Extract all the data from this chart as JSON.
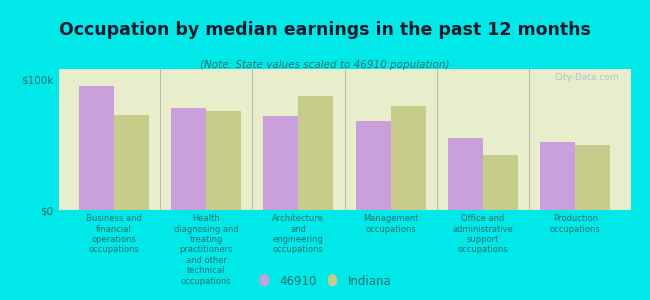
{
  "title": "Occupation by median earnings in the past 12 months",
  "subtitle": "(Note: State values scaled to 46910 population)",
  "categories": [
    "Business and\nfinancial\noperations\noccupations",
    "Health\ndiagnosing and\ntreating\npractitioners\nand other\ntechnical\noccupations",
    "Architecture\nand\nengineering\noccupations",
    "Management\noccupations",
    "Office and\nadministrative\nsupport\noccupations",
    "Production\noccupations"
  ],
  "values_46910": [
    95000,
    78000,
    72000,
    68000,
    55000,
    52000
  ],
  "values_indiana": [
    73000,
    76000,
    87000,
    80000,
    42000,
    50000
  ],
  "color_46910": "#c9a0dc",
  "color_indiana": "#c8cc8a",
  "yticks": [
    0,
    100000
  ],
  "ytick_labels": [
    "$0",
    "$100k"
  ],
  "background_color": "#00e8e8",
  "plot_bg_color": "#e8edcc",
  "legend_label_46910": "46910",
  "legend_label_indiana": "Indiana",
  "watermark": "City-Data.com",
  "title_color": "#1a1a2e",
  "subtitle_color": "#2a7070",
  "tick_label_color": "#2a7070",
  "separator_color": "#bbbbaa",
  "baseline_color": "#888888"
}
